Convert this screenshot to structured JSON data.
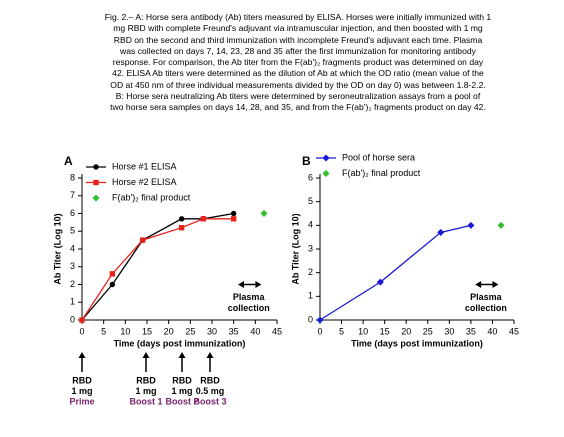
{
  "caption": [
    "Fig. 2.– A: Horse sera antibody (Ab) titers measured by ELISA. Horses were initially immunized with 1",
    "mg RBD with complete Freund's adjuvant via intramuscular injection, and then boosted with 1 mg",
    "RBD on the second and third immunization with incomplete Freund's adjuvant each time. Plasma",
    "was collected on days 7, 14, 23, 28 and 35 after the first immunization for monitoring antibody",
    "response. For comparison, the Ab titer from the F(ab')₂ fragments product was determined on day",
    "42. ELISA Ab titers were determined as the dilution of Ab at which the OD ratio (mean value of the",
    "OD at 450 nm of three individual measurements divided by the OD on day 0) was between 1.8-2.2.",
    "B: Horse sera neutralizing Ab titers were determined by seroneutralization assays from a pool of",
    "two horse sera samples on days 14, 28, and 35, and from the F(ab')₂ fragments product on day 42."
  ],
  "chart_data": [
    {
      "type": "line",
      "panel": "A",
      "x_label": "Time (days post immunization)",
      "y_label": "Ab Titer (Log 10)",
      "xlim": [
        0,
        45
      ],
      "xticks": [
        0,
        5,
        10,
        15,
        20,
        25,
        30,
        35,
        40,
        45
      ],
      "ylim": [
        0,
        8
      ],
      "yticks": [
        0,
        1,
        2,
        3,
        4,
        5,
        6,
        7,
        8
      ],
      "series": [
        {
          "name": "Horse #1 ELISA",
          "color": "#000000",
          "marker": "circle",
          "x": [
            0,
            7,
            14,
            23,
            28,
            35
          ],
          "values": [
            0,
            2,
            4.5,
            5.7,
            5.7,
            6
          ]
        },
        {
          "name": "Horse #2 ELISA",
          "color": "#e8221c",
          "marker": "square",
          "x": [
            0,
            7,
            14,
            23,
            28,
            35
          ],
          "values": [
            0,
            2.6,
            4.5,
            5.2,
            5.7,
            5.7
          ]
        },
        {
          "name": "F(ab')₂ final product",
          "color": "#2fbf2f",
          "marker": "diamond",
          "x": [
            42
          ],
          "values": [
            6
          ]
        }
      ],
      "annotations": {
        "plasma": [
          "Plasma",
          "collection"
        ],
        "immunizations": [
          [
            "RBD",
            "1 mg",
            "Prime"
          ],
          [
            "RBD",
            "1 mg",
            "Boost 1"
          ],
          [
            "RBD",
            "1 mg",
            "Boost 2"
          ],
          [
            "RBD",
            "0.5 mg",
            "Boost 3"
          ]
        ]
      }
    },
    {
      "type": "line",
      "panel": "B",
      "x_label": "Time (days post immunization)",
      "y_label": "Ab Titer (Log 10)",
      "xlim": [
        0,
        45
      ],
      "xticks": [
        0,
        5,
        10,
        15,
        20,
        25,
        30,
        35,
        40,
        45
      ],
      "ylim": [
        0,
        6
      ],
      "yticks": [
        0,
        1,
        2,
        3,
        4,
        5,
        6
      ],
      "series": [
        {
          "name": "Pool of horse sera",
          "color": "#1a1ad6",
          "marker": "diamond",
          "x": [
            0,
            14,
            28,
            35
          ],
          "values": [
            0,
            1.6,
            3.7,
            4
          ]
        },
        {
          "name": "F(ab')₂ final product",
          "color": "#2fbf2f",
          "marker": "diamond",
          "x": [
            42
          ],
          "values": [
            4
          ]
        }
      ],
      "annotations": {
        "plasma": [
          "Plasma",
          "collection"
        ]
      }
    }
  ]
}
